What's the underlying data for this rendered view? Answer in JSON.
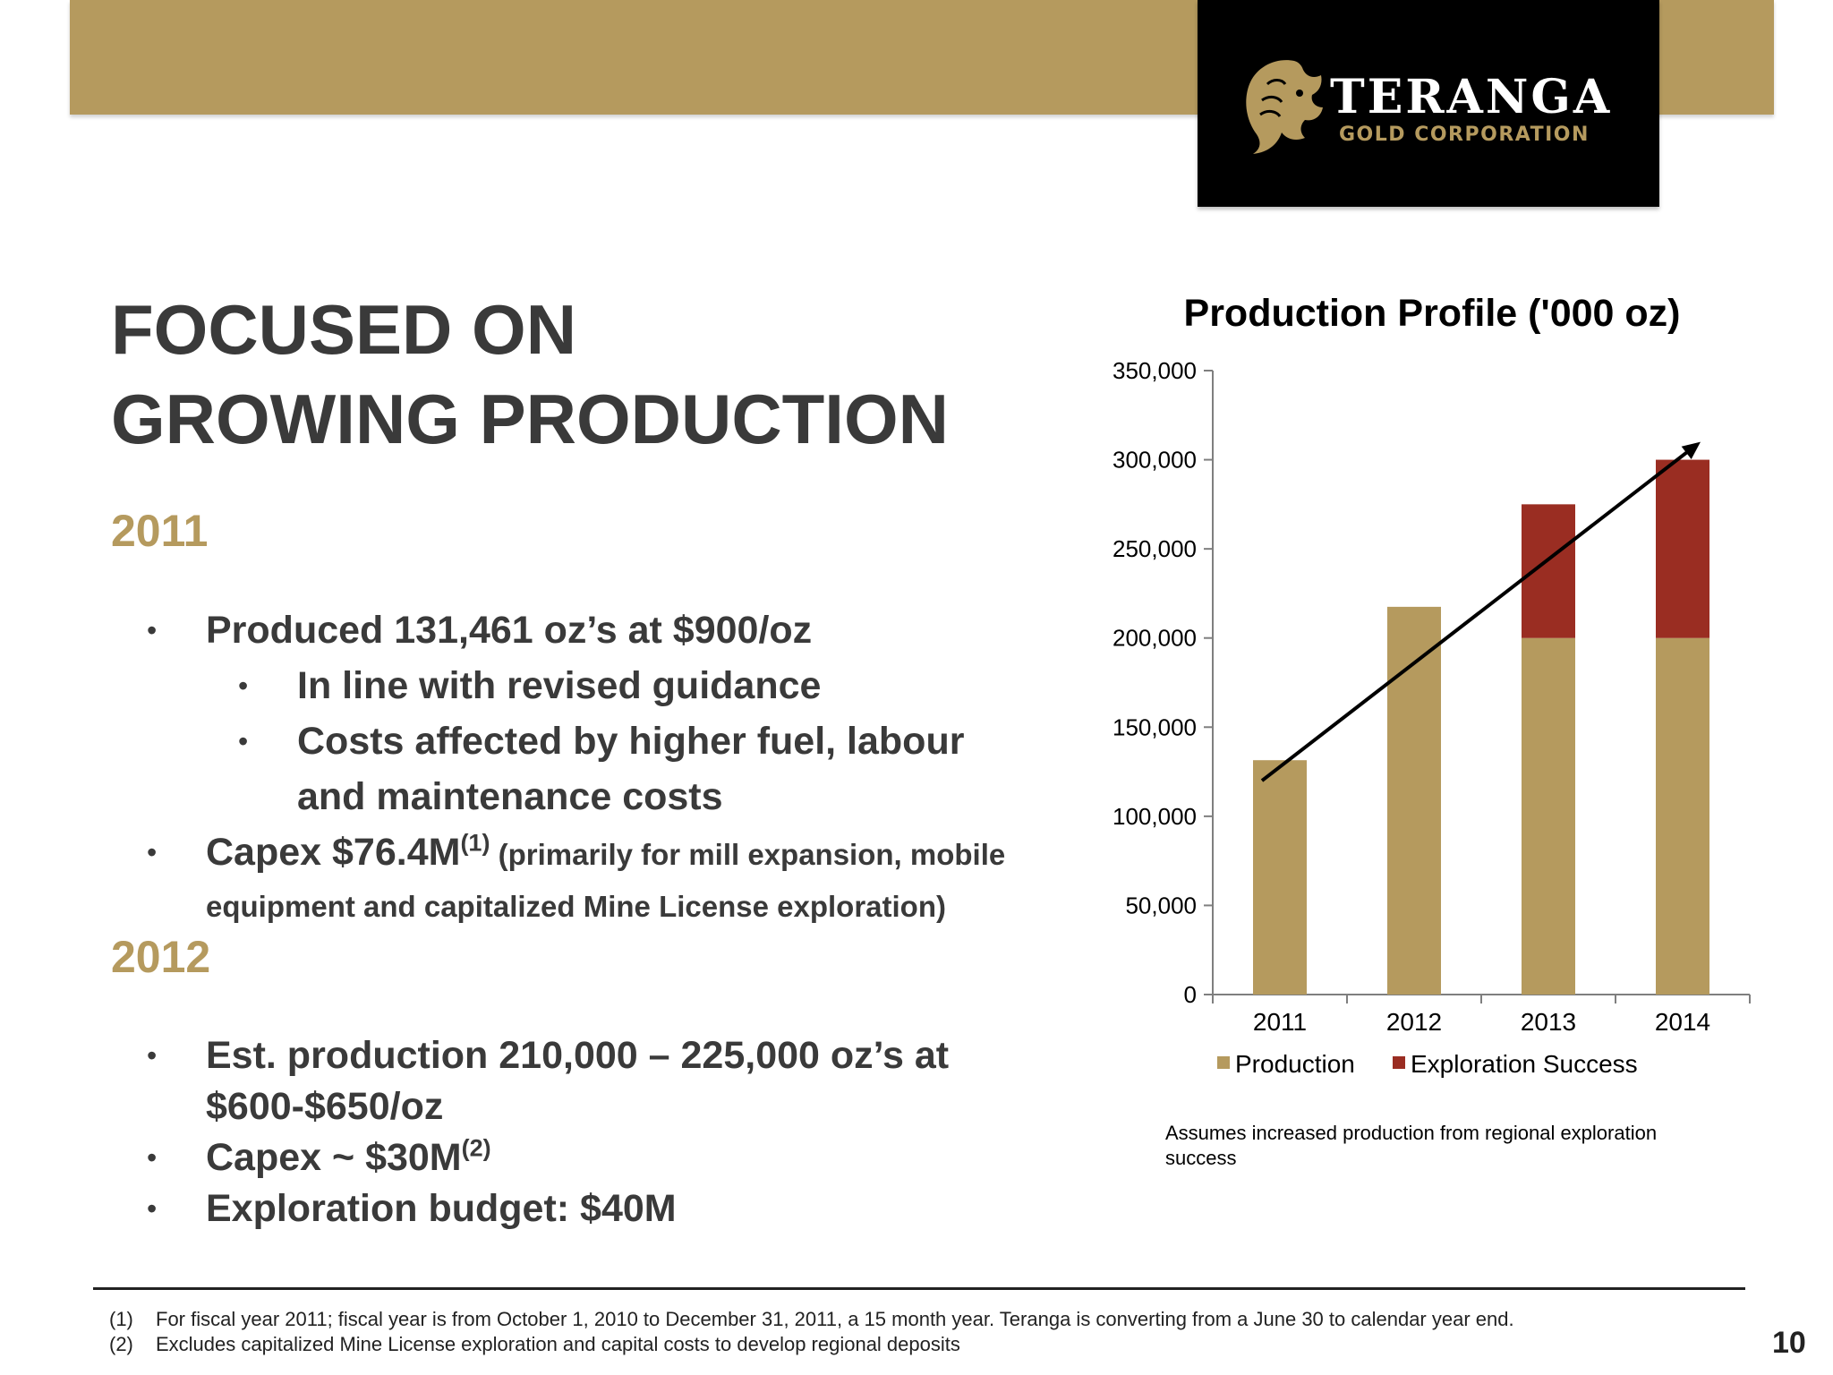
{
  "brand": {
    "name": "TERANGA",
    "sub": "GOLD CORPORATION",
    "gold_color": "#b59a5e",
    "red_color": "#9a2d22",
    "icon": "lion-head-icon"
  },
  "headline": {
    "line1": "FOCUSED ON",
    "line2": "GROWING PRODUCTION"
  },
  "section_2011": {
    "year": "2011",
    "bullet1": "Produced 131,461 oz’s at $900/oz",
    "sub1": "In line with revised guidance",
    "sub2_line1": "Costs affected by higher fuel, labour",
    "sub2_line2": "and maintenance costs",
    "capex_main": "Capex $76.4M",
    "capex_sup": "(1)",
    "capex_paren_line1": " (primarily for mill expansion, mobile",
    "capex_paren_line2": "equipment and capitalized Mine License exploration)"
  },
  "section_2012": {
    "year": "2012",
    "bullet1_line1": "Est. production 210,000 – 225,000 oz’s at",
    "bullet1_line2": "$600-$650/oz",
    "capex_main": "Capex ~ $30M",
    "capex_sup": "(2)",
    "exploration": "Exploration budget: $40M"
  },
  "chart_data": {
    "type": "bar",
    "stacked": true,
    "title": "Production Profile ('000 oz)",
    "categories": [
      "2011",
      "2012",
      "2013",
      "2014"
    ],
    "series": [
      {
        "name": "Production",
        "values": [
          131461,
          217500,
          200000,
          200000
        ],
        "color": "#b59a5e"
      },
      {
        "name": "Exploration Success",
        "values": [
          0,
          0,
          75000,
          100000
        ],
        "color": "#9a2d22"
      }
    ],
    "ylim": [
      0,
      350000
    ],
    "yticks": [
      0,
      50000,
      100000,
      150000,
      200000,
      250000,
      300000,
      350000
    ],
    "ytick_labels": [
      "0",
      "50,000",
      "100,000",
      "150,000",
      "200,000",
      "250,000",
      "300,000",
      "350,000"
    ],
    "trend_arrow": {
      "from": [
        "2011",
        120000
      ],
      "to": [
        "2014",
        310000
      ]
    },
    "legend_position": "bottom",
    "grid": false,
    "xlabel": "",
    "ylabel": ""
  },
  "chart_note": "Assumes increased production from regional exploration success",
  "footnotes": [
    {
      "num": "(1)",
      "text": "For fiscal year 2011;  fiscal year is from October 1, 2010 to December 31, 2011, a 15 month year.  Teranga is converting from a June 30 to calendar year end."
    },
    {
      "num": "(2)",
      "text": "Excludes capitalized Mine License exploration and capital costs to develop regional deposits"
    }
  ],
  "page_number": "10"
}
